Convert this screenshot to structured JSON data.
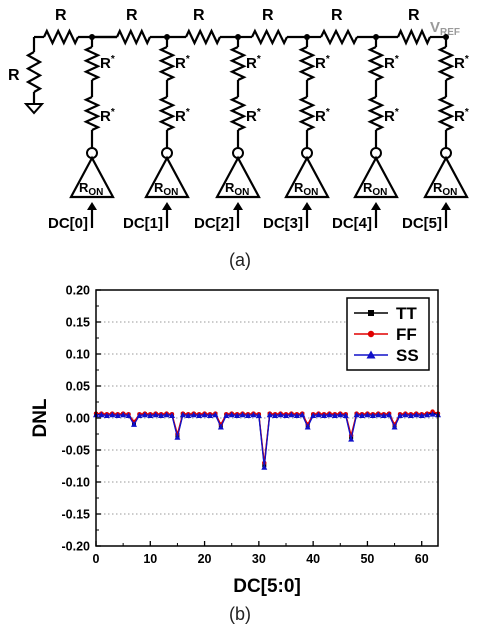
{
  "figure_a": {
    "caption": "(a)",
    "resistor_label": "R",
    "rstar_label": "R",
    "rstar_sup": "*",
    "vref_main": "V",
    "vref_sub": "REF",
    "ron_main": "R",
    "ron_sub": "ON",
    "inputs": [
      "DC[0]",
      "DC[1]",
      "DC[2]",
      "DC[3]",
      "DC[4]",
      "DC[5]"
    ],
    "colors": {
      "wire": "#000000",
      "vref": "#9a9a9a"
    }
  },
  "figure_b": {
    "caption": "(b)"
  },
  "chart_data": {
    "type": "line",
    "title": "",
    "xlabel": "DC[5:0]",
    "ylabel": "DNL",
    "xlim": [
      0,
      63
    ],
    "ylim": [
      -0.2,
      0.2
    ],
    "xticks": [
      0,
      10,
      20,
      30,
      40,
      50,
      60
    ],
    "yticks": [
      -0.2,
      -0.15,
      -0.1,
      -0.05,
      0.0,
      0.05,
      0.1,
      0.15,
      0.2
    ],
    "ytick_labels": [
      "-0.20",
      "-0.15",
      "-0.10",
      "-0.05",
      "0.00",
      "0.05",
      "0.10",
      "0.15",
      "0.20"
    ],
    "grid": "horizontal-dotted",
    "legend_position": "top-right",
    "x": [
      0,
      1,
      2,
      3,
      4,
      5,
      6,
      7,
      8,
      9,
      10,
      11,
      12,
      13,
      14,
      15,
      16,
      17,
      18,
      19,
      20,
      21,
      22,
      23,
      24,
      25,
      26,
      27,
      28,
      29,
      30,
      31,
      32,
      33,
      34,
      35,
      36,
      37,
      38,
      39,
      40,
      41,
      42,
      43,
      44,
      45,
      46,
      47,
      48,
      49,
      50,
      51,
      52,
      53,
      54,
      55,
      56,
      57,
      58,
      59,
      60,
      61,
      62,
      63
    ],
    "series": [
      {
        "name": "TT",
        "color": "#000000",
        "marker": "square",
        "values": [
          0.006,
          0.006,
          0.005,
          0.006,
          0.005,
          0.006,
          0.005,
          -0.008,
          0.005,
          0.006,
          0.005,
          0.006,
          0.005,
          0.006,
          0.005,
          -0.028,
          0.006,
          0.005,
          0.006,
          0.005,
          0.006,
          0.005,
          0.006,
          -0.012,
          0.005,
          0.006,
          0.005,
          0.006,
          0.005,
          0.006,
          0.005,
          -0.074,
          0.006,
          0.005,
          0.006,
          0.005,
          0.006,
          0.005,
          0.006,
          -0.012,
          0.005,
          0.006,
          0.005,
          0.006,
          0.005,
          0.006,
          0.005,
          -0.03,
          0.006,
          0.005,
          0.006,
          0.005,
          0.006,
          0.005,
          0.006,
          -0.012,
          0.005,
          0.006,
          0.005,
          0.006,
          0.005,
          0.006,
          0.008,
          0.006
        ]
      },
      {
        "name": "FF",
        "color": "#e00000",
        "marker": "circle",
        "values": [
          0.007,
          0.007,
          0.006,
          0.007,
          0.006,
          0.007,
          0.006,
          -0.006,
          0.006,
          0.007,
          0.006,
          0.007,
          0.006,
          0.007,
          0.006,
          -0.025,
          0.007,
          0.006,
          0.007,
          0.006,
          0.007,
          0.006,
          0.007,
          -0.01,
          0.006,
          0.007,
          0.006,
          0.007,
          0.006,
          0.007,
          0.006,
          -0.07,
          0.007,
          0.006,
          0.007,
          0.006,
          0.007,
          0.006,
          0.007,
          -0.01,
          0.006,
          0.007,
          0.006,
          0.007,
          0.006,
          0.007,
          0.006,
          -0.027,
          0.007,
          0.006,
          0.007,
          0.006,
          0.007,
          0.006,
          0.007,
          -0.01,
          0.006,
          0.007,
          0.006,
          0.007,
          0.006,
          0.007,
          0.01,
          0.007
        ]
      },
      {
        "name": "SS",
        "color": "#1010c8",
        "marker": "triangle",
        "values": [
          0.005,
          0.005,
          0.004,
          0.005,
          0.004,
          0.005,
          0.004,
          -0.01,
          0.004,
          0.005,
          0.004,
          0.005,
          0.004,
          0.005,
          0.004,
          -0.03,
          0.005,
          0.004,
          0.005,
          0.004,
          0.005,
          0.004,
          0.005,
          -0.014,
          0.004,
          0.005,
          0.004,
          0.005,
          0.004,
          0.005,
          0.004,
          -0.077,
          0.005,
          0.004,
          0.005,
          0.004,
          0.005,
          0.004,
          0.005,
          -0.014,
          0.004,
          0.005,
          0.004,
          0.005,
          0.004,
          0.005,
          0.004,
          -0.033,
          0.005,
          0.004,
          0.005,
          0.004,
          0.005,
          0.004,
          0.005,
          -0.014,
          0.004,
          0.005,
          0.004,
          0.005,
          0.004,
          0.005,
          0.006,
          0.005
        ]
      }
    ]
  }
}
